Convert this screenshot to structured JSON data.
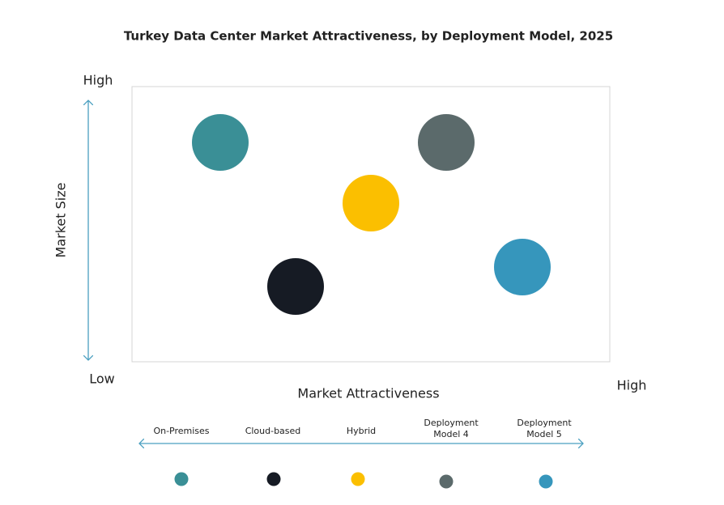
{
  "title": "Turkey Data Center Market Attractiveness,  by Deployment Model, 2025",
  "y_axis": {
    "label": "Market Size",
    "high": "High",
    "low": "Low"
  },
  "x_axis": {
    "label": "Market Attractiveness",
    "high": "High"
  },
  "items": [
    {
      "label": "On-Premises",
      "color": "#3a8f96"
    },
    {
      "label": "Cloud-based",
      "color": "#161b24"
    },
    {
      "label": "Hybrid",
      "color": "#fbbf00"
    },
    {
      "label": "Deployment Model 4",
      "color": "#5b6a6b"
    },
    {
      "label": "Deployment Model 5",
      "color": "#3696bc"
    }
  ]
}
